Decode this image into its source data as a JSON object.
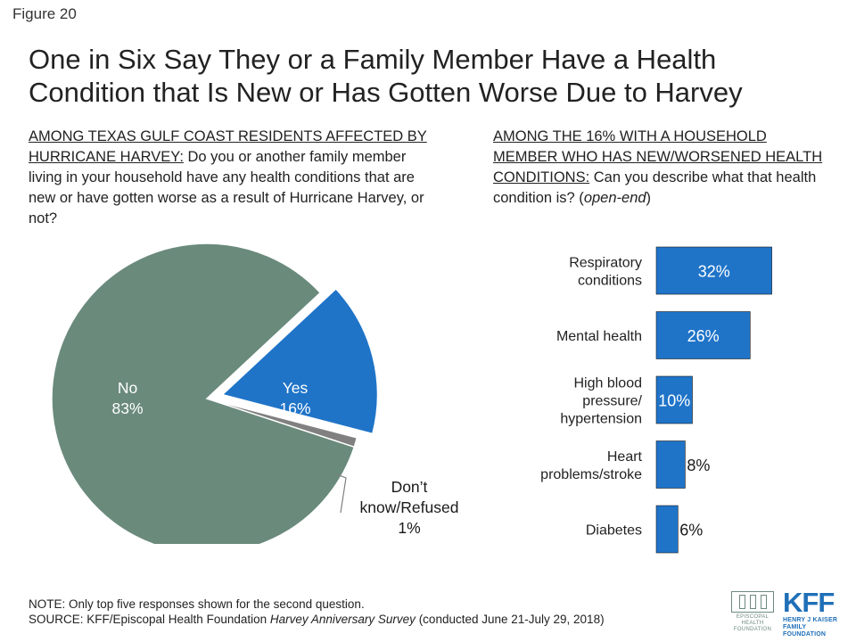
{
  "figure_label": "Figure 20",
  "title": "One in Six Say They or a Family Member Have a Health Condition that Is New or Has Gotten Worse Due to Harvey",
  "left_question": {
    "header": "AMONG TEXAS GULF COAST RESIDENTS AFFECTED BY HURRICANE HARVEY:",
    "text": " Do you or another family member living in your household have any health conditions that are new or have gotten worse as a result of Hurricane Harvey, or not?"
  },
  "right_question": {
    "header": "AMONG THE 16% WITH A HOUSEHOLD MEMBER WHO HAS NEW/WORSENED HEALTH CONDITIONS:",
    "text": " Can you describe what that health condition is? (",
    "italic": "open-end",
    "text_end": ")"
  },
  "chart_data": [
    {
      "type": "pie",
      "slices": [
        {
          "label": "No",
          "value": 83,
          "value_label": "83%",
          "color": "#6a8a7c"
        },
        {
          "label": "Yes",
          "value": 16,
          "value_label": "16%",
          "color": "#1f74c8",
          "exploded": true
        },
        {
          "label": "Don’t know/Refused",
          "value": 1,
          "value_label": "1%",
          "color": "#808080"
        }
      ]
    },
    {
      "type": "bar",
      "orientation": "horizontal",
      "color": "#1f74c8",
      "categories": [
        "Respiratory conditions",
        "Mental health",
        "High blood pressure/ hypertension",
        "Heart problems/stroke",
        "Diabetes"
      ],
      "category_lines": [
        [
          "Respiratory",
          "conditions"
        ],
        [
          "Mental health"
        ],
        [
          "High blood",
          "pressure/",
          "hypertension"
        ],
        [
          "Heart",
          "problems/stroke"
        ],
        [
          "Diabetes"
        ]
      ],
      "values": [
        32,
        26,
        10,
        8,
        6
      ],
      "value_labels": [
        "32%",
        "26%",
        "10%",
        "8%",
        "6%"
      ]
    }
  ],
  "footer": {
    "note": "NOTE: Only top five responses shown for the second question.",
    "source_prefix": "SOURCE: KFF/Episcopal Health Foundation ",
    "source_italic": "Harvey Anniversary Survey",
    "source_suffix": " (conducted June 21-July 29, 2018)"
  },
  "logos": {
    "ehf_text": "EPISCOPAL HEALTH FOUNDATION",
    "kff_mark": "KFF",
    "kff_sub": "HENRY J KAISER FAMILY FOUNDATION"
  }
}
